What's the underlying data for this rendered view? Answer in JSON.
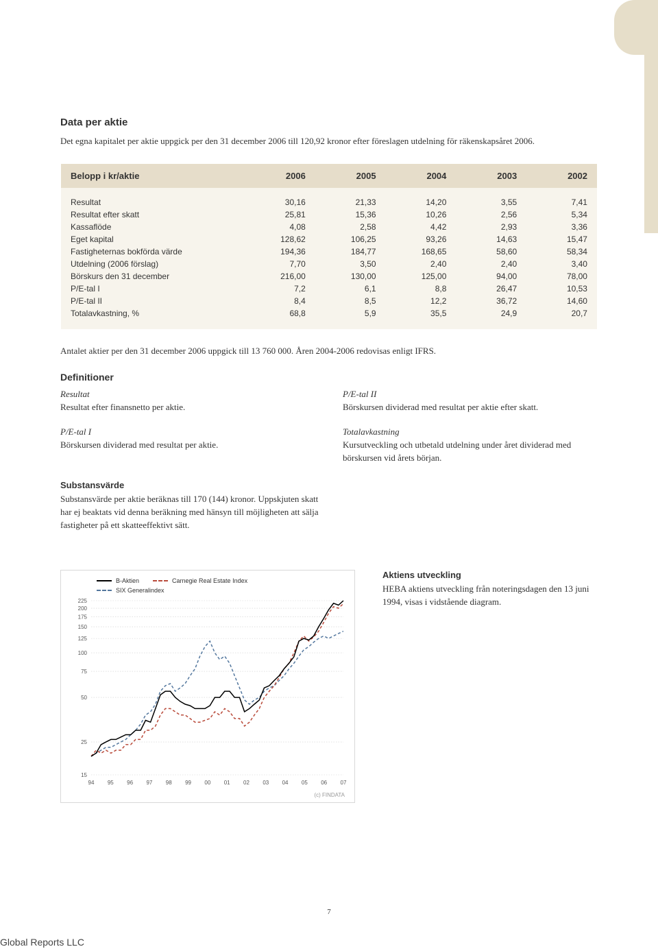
{
  "header": {
    "title": "Data per aktie",
    "intro": "Det egna kapitalet per aktie uppgick per den 31 december 2006 till 120,92 kronor efter föreslagen utdelning för räkenskapsåret 2006."
  },
  "table": {
    "head_label": "Belopp i kr/aktie",
    "years": [
      "2006",
      "2005",
      "2004",
      "2003",
      "2002"
    ],
    "rows": [
      {
        "label": "Resultat",
        "v": [
          "30,16",
          "21,33",
          "14,20",
          "3,55",
          "7,41"
        ]
      },
      {
        "label": "Resultat efter skatt",
        "v": [
          "25,81",
          "15,36",
          "10,26",
          "2,56",
          "5,34"
        ]
      },
      {
        "label": "Kassaflöde",
        "v": [
          "4,08",
          "2,58",
          "4,42",
          "2,93",
          "3,36"
        ]
      },
      {
        "label": "Eget kapital",
        "v": [
          "128,62",
          "106,25",
          "93,26",
          "14,63",
          "15,47"
        ]
      },
      {
        "label": "Fastigheternas bokförda värde",
        "v": [
          "194,36",
          "184,77",
          "168,65",
          "58,60",
          "58,34"
        ]
      },
      {
        "label": "Utdelning (2006 förslag)",
        "v": [
          "7,70",
          "3,50",
          "2,40",
          "2,40",
          "3,40"
        ]
      },
      {
        "label": "Börskurs den 31 december",
        "v": [
          "216,00",
          "130,00",
          "125,00",
          "94,00",
          "78,00"
        ]
      },
      {
        "label": "P/E-tal I",
        "v": [
          "7,2",
          "6,1",
          "8,8",
          "26,47",
          "10,53"
        ]
      },
      {
        "label": "P/E-tal II",
        "v": [
          "8,4",
          "8,5",
          "12,2",
          "36,72",
          "14,60"
        ]
      },
      {
        "label": "Totalavkastning, %",
        "v": [
          "68,8",
          "5,9",
          "35,5",
          "24,9",
          "20,7"
        ]
      }
    ],
    "note": "Antalet aktier per den 31 december 2006 uppgick till 13 760 000. Åren 2004-2006 redovisas enligt IFRS."
  },
  "definitions": {
    "heading": "Definitioner",
    "items": [
      {
        "term": "Resultat",
        "body": "Resultat efter finansnetto per aktie."
      },
      {
        "term": "P/E-tal II",
        "body": "Börskursen dividerad med resultat per aktie efter skatt."
      },
      {
        "term": "P/E-tal I",
        "body": "Börskursen dividerad med resultat per aktie."
      },
      {
        "term": "Totalavkastning",
        "body": "Kursutveckling och utbetald utdelning under året dividerad med börskursen vid årets början."
      }
    ]
  },
  "substans": {
    "heading": "Substansvärde",
    "body": "Substansvärde per aktie beräknas till 170 (144) kronor. Uppskjuten skatt har ej beaktats vid denna beräkning med hänsyn till möjligheten att sälja fastigheter på ett skatteeffektivt sätt."
  },
  "chart": {
    "type": "line",
    "legend": [
      "B-Aktien",
      "SIX Generalindex",
      "Carnegie Real Estate Index"
    ],
    "x_labels": [
      "94",
      "95",
      "96",
      "97",
      "98",
      "99",
      "00",
      "01",
      "02",
      "03",
      "04",
      "05",
      "06",
      "07"
    ],
    "y_ticks": [
      15,
      25,
      50,
      75,
      100,
      125,
      150,
      175,
      200,
      225
    ],
    "yscale": "log",
    "colors": {
      "baktien": "#000000",
      "six": "#53779e",
      "carnegie": "#b94a3a",
      "grid": "#cfcfcf",
      "axis": "#aaaaaa",
      "bg": "#ffffff"
    },
    "line_width": 1.5,
    "series": {
      "baktien": [
        20,
        21,
        24,
        25,
        26,
        26,
        27,
        28,
        28,
        30,
        30,
        35,
        34,
        42,
        52,
        55,
        55,
        50,
        47,
        45,
        44,
        42,
        42,
        42,
        44,
        50,
        50,
        55,
        55,
        50,
        50,
        40,
        42,
        45,
        48,
        58,
        60,
        65,
        70,
        78,
        85,
        94,
        120,
        125,
        122,
        130,
        150,
        170,
        195,
        216,
        210,
        225
      ],
      "six": [
        20,
        21,
        22,
        23,
        23,
        24,
        25,
        26,
        28,
        30,
        33,
        38,
        40,
        45,
        55,
        60,
        62,
        55,
        58,
        62,
        70,
        78,
        95,
        110,
        120,
        100,
        90,
        95,
        85,
        70,
        58,
        48,
        45,
        48,
        50,
        55,
        58,
        60,
        65,
        70,
        78,
        85,
        95,
        105,
        110,
        118,
        125,
        130,
        125,
        130,
        135,
        140
      ],
      "carnegie": [
        20,
        22,
        21,
        22,
        21,
        22,
        22,
        24,
        24,
        26,
        26,
        30,
        30,
        32,
        38,
        42,
        42,
        40,
        38,
        38,
        36,
        34,
        34,
        35,
        36,
        40,
        38,
        42,
        40,
        36,
        36,
        32,
        34,
        38,
        42,
        50,
        55,
        60,
        68,
        78,
        85,
        100,
        120,
        130,
        120,
        128,
        140,
        160,
        185,
        205,
        200,
        215
      ]
    },
    "caption": "(c) FINDATA"
  },
  "chart_side": {
    "heading": "Aktiens utveckling",
    "body": "HEBA aktiens utveckling från noteringsdagen den 13 juni 1994, visas i vidstående diagram."
  },
  "page_number": "7",
  "footer": "Global Reports LLC"
}
